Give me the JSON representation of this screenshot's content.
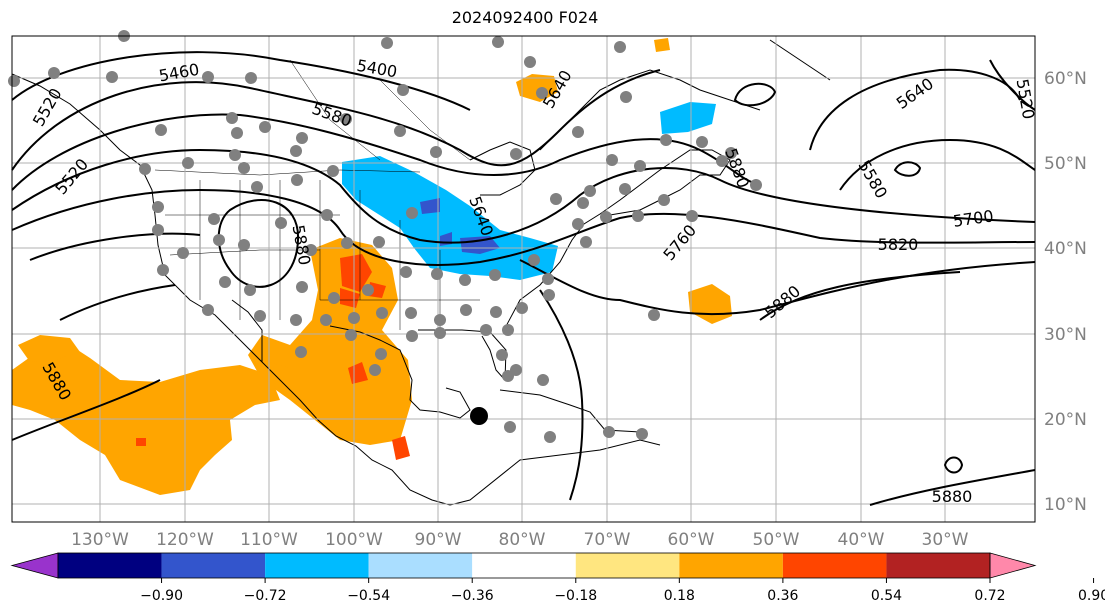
{
  "title": "2024092400 F024",
  "lon_labels": [
    "130°W",
    "120°W",
    "110°W",
    "100°W",
    "90°W",
    "80°W",
    "70°W",
    "60°W",
    "50°W",
    "40°W",
    "30°W"
  ],
  "lat_labels": [
    "60°N",
    "50°N",
    "40°N",
    "30°N",
    "20°N",
    "10°N"
  ],
  "contour_labels": [
    "5460",
    "5400",
    "5580",
    "5520",
    "5520",
    "5640",
    "5640",
    "5580",
    "5700",
    "5820",
    "5760",
    "5880",
    "5880",
    "5880",
    "5880",
    "5880",
    "5640",
    "5520"
  ],
  "colorbar": {
    "tick_labels": [
      "−0.90",
      "−0.72",
      "−0.54",
      "−0.36",
      "−0.18",
      "0.18",
      "0.36",
      "0.54",
      "0.72",
      "0.90"
    ],
    "colors": [
      "#9933cc",
      "#000080",
      "#3355cc",
      "#00bbff",
      "#aadeff",
      "#ffffff",
      "#ffe680",
      "#ffa500",
      "#ff4500",
      "#b22222",
      "#ff88aa"
    ]
  },
  "colors": {
    "positive_fill": "#ffa500",
    "positive_strong": "#ff4500",
    "negative_fill": "#00bbff",
    "negative_strong": "#3355cc",
    "station": "#808080",
    "grid": "#b0b0b0",
    "axis_text": "#808080"
  }
}
